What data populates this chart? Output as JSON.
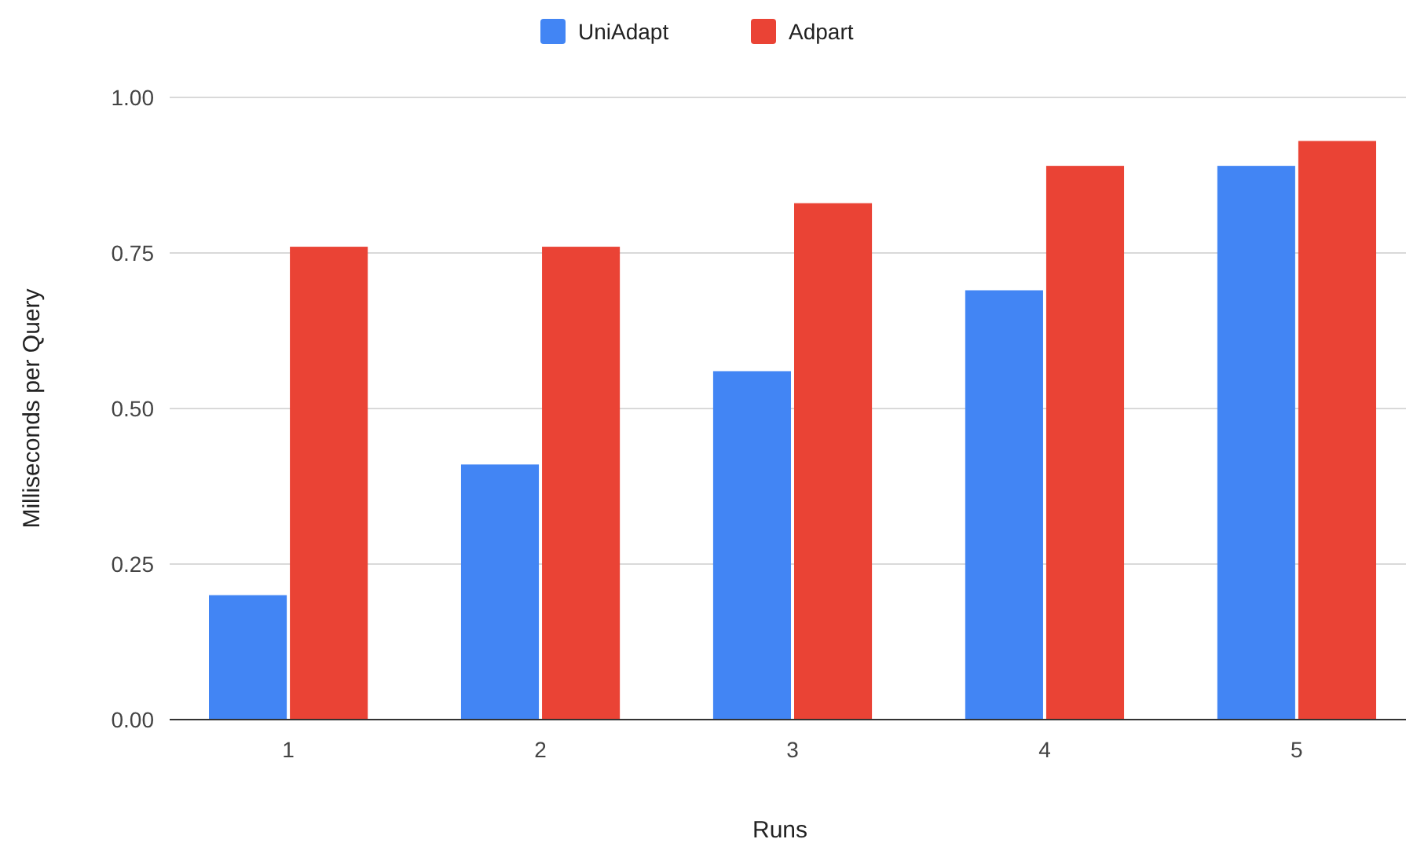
{
  "chart_data": {
    "type": "bar",
    "xlabel": "Runs",
    "ylabel": "Milliseconds per Query",
    "categories": [
      "1",
      "2",
      "3",
      "4",
      "5"
    ],
    "series": [
      {
        "name": "UniAdapt",
        "color": "#4285f4",
        "values": [
          0.2,
          0.41,
          0.56,
          0.69,
          0.89
        ]
      },
      {
        "name": "Adpart",
        "color": "#ea4335",
        "values": [
          0.76,
          0.76,
          0.83,
          0.89,
          0.93
        ]
      }
    ],
    "ylim": [
      0,
      1
    ],
    "yticks": [
      {
        "value": 0,
        "label": "0.00"
      },
      {
        "value": 0.25,
        "label": "0.25"
      },
      {
        "value": 0.5,
        "label": "0.50"
      },
      {
        "value": 0.75,
        "label": "0.75"
      },
      {
        "value": 1,
        "label": "1.00"
      }
    ],
    "grid": "y",
    "legend": "top"
  }
}
